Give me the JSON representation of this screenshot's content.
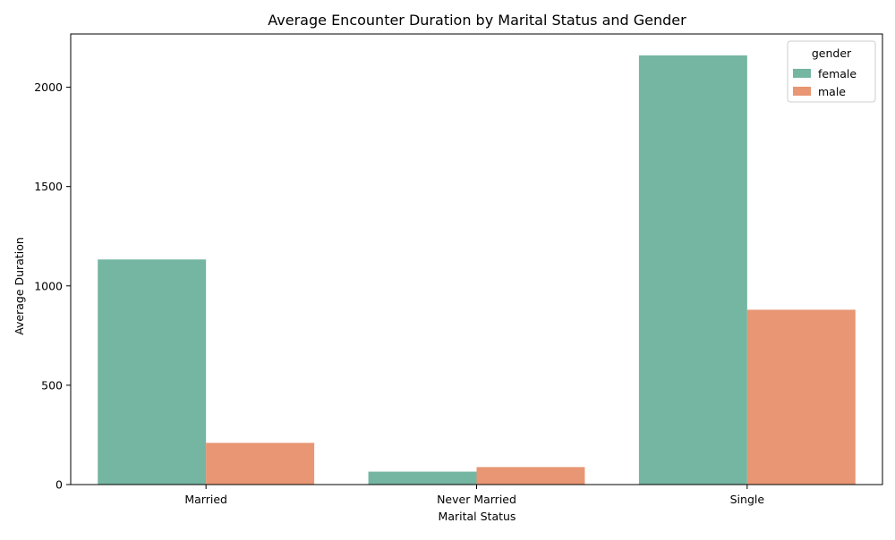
{
  "chart_data": {
    "type": "bar",
    "title": "Average Encounter Duration by Marital Status and Gender",
    "xlabel": "Marital Status",
    "ylabel": "Average Duration",
    "categories": [
      "Married",
      "Never Married",
      "Single"
    ],
    "series": [
      {
        "name": "female",
        "color": "#74b6a1",
        "values": [
          1133,
          65,
          2160
        ]
      },
      {
        "name": "male",
        "color": "#e89673",
        "values": [
          210,
          88,
          880
        ]
      }
    ],
    "ylim": [
      0,
      2268
    ],
    "yticks": [
      0,
      500,
      1000,
      1500,
      2000
    ],
    "legend": {
      "title": "gender",
      "placement": "top-right"
    },
    "grid": false
  }
}
